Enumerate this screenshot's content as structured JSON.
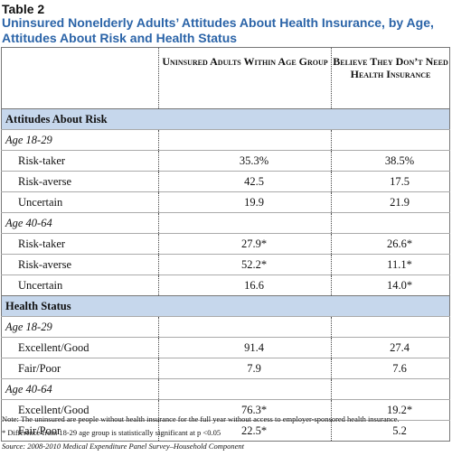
{
  "header": {
    "label": "Table 2",
    "title": "Uninsured Nonelderly Adults’ Attitudes About Health Insurance, by Age, Attitudes About Risk and Health Status"
  },
  "table": {
    "columns": [
      "Uninsured Adults Within Age Group",
      "Believe They Don’t Need Health Insurance"
    ],
    "sections": [
      {
        "title": "Attitudes About Risk",
        "groups": [
          {
            "label": "Age 18-29",
            "rows": [
              {
                "label": "Risk-taker",
                "values": [
                  "35.3%",
                  "38.5%"
                ]
              },
              {
                "label": "Risk-averse",
                "values": [
                  "42.5",
                  "17.5"
                ]
              },
              {
                "label": "Uncertain",
                "values": [
                  "19.9",
                  "21.9"
                ]
              }
            ]
          },
          {
            "label": "Age 40-64",
            "rows": [
              {
                "label": "Risk-taker",
                "values": [
                  "27.9*",
                  "26.6*"
                ]
              },
              {
                "label": "Risk-averse",
                "values": [
                  "52.2*",
                  "11.1*"
                ]
              },
              {
                "label": "Uncertain",
                "values": [
                  "16.6",
                  "14.0*"
                ]
              }
            ]
          }
        ]
      },
      {
        "title": "Health Status",
        "groups": [
          {
            "label": "Age 18-29",
            "rows": [
              {
                "label": "Excellent/Good",
                "values": [
                  "91.4",
                  "27.4"
                ]
              },
              {
                "label": "Fair/Poor",
                "values": [
                  "7.9",
                  "7.6"
                ]
              }
            ]
          },
          {
            "label": "Age 40-64",
            "rows": [
              {
                "label": "Excellent/Good",
                "values": [
                  "76.3*",
                  "19.2*"
                ]
              },
              {
                "label": "Fair/Poor",
                "values": [
                  "22.5*",
                  "5.2"
                ]
              }
            ]
          }
        ]
      }
    ]
  },
  "notes": [
    "Note:  The uninsured are people without health insurance for the full year without access to employer-sponsored health insurance.",
    "* Difference from 18-29 age group is statistically significant at p <0.05",
    "Source: 2008-2010 Medical Expenditure Panel Survey–Household Component"
  ]
}
